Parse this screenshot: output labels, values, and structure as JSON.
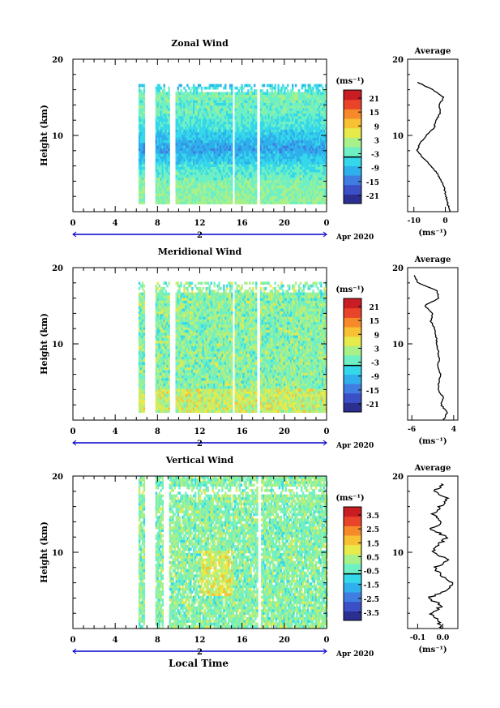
{
  "figure": {
    "xlabel": "Local Time",
    "date_label": "Apr 2020",
    "date_tick_label": "2"
  },
  "panels": [
    {
      "title": "Zonal Wind",
      "ylabel": "Height (km)",
      "y_ticks": [
        "20",
        "10"
      ],
      "x_ticks": [
        "0",
        "4",
        "8",
        "12",
        "16",
        "20",
        "0"
      ],
      "colorbar_unit": "(ms⁻¹)",
      "colorbar_ticks": [
        "21",
        "15",
        "9",
        "3",
        "-3",
        "-9",
        "-15",
        "-21"
      ],
      "avg_title": "Average",
      "avg_y_ticks": [
        "20",
        "10"
      ],
      "avg_x_ticks": [
        "-10",
        "0"
      ],
      "avg_unit": "(ms⁻¹)"
    },
    {
      "title": "Meridional Wind",
      "ylabel": "Height (km)",
      "y_ticks": [
        "20",
        "10"
      ],
      "x_ticks": [
        "0",
        "4",
        "8",
        "12",
        "16",
        "20",
        "0"
      ],
      "colorbar_unit": "(ms⁻¹)",
      "colorbar_ticks": [
        "21",
        "15",
        "9",
        "3",
        "-3",
        "-9",
        "-15",
        "-21"
      ],
      "avg_title": "Average",
      "avg_y_ticks": [
        "20",
        "10"
      ],
      "avg_x_ticks": [
        "-6",
        "4"
      ],
      "avg_unit": "(ms⁻¹)"
    },
    {
      "title": "Vertical Wind",
      "ylabel": "Height (km)",
      "y_ticks": [
        "20",
        "10"
      ],
      "x_ticks": [
        "0",
        "4",
        "8",
        "12",
        "16",
        "20",
        "0"
      ],
      "colorbar_unit": "(ms⁻¹)",
      "colorbar_ticks": [
        "3.5",
        "2.5",
        "1.5",
        "0.5",
        "-0.5",
        "-1.5",
        "-2.5",
        "-3.5"
      ],
      "avg_title": "Average",
      "avg_y_ticks": [
        "20",
        "10"
      ],
      "avg_x_ticks": [
        "-0.1",
        "0.0"
      ],
      "avg_unit": "(ms⁻¹)"
    }
  ],
  "colors": {
    "colormap": [
      "#2b2f8f",
      "#3b4fc7",
      "#3f7ee0",
      "#2fb0ec",
      "#35d8ea",
      "#6ef0c4",
      "#a8f08a",
      "#e6ea4a",
      "#f7c133",
      "#f68a2a",
      "#e8442a",
      "#c81e23"
    ],
    "missing": "#ffffff",
    "date_axis": "#0000cc"
  },
  "chart_data": [
    {
      "type": "heatmap",
      "title": "Zonal Wind",
      "ylabel": "Height (km)",
      "xlim": [
        0,
        24
      ],
      "ylim": [
        0,
        20
      ],
      "clim": [
        -24,
        24
      ],
      "units": "ms-1",
      "data_coverage_hours": [
        [
          6.2,
          6.7
        ],
        [
          7.8,
          9.1
        ],
        [
          9.7,
          15.0
        ],
        [
          15.3,
          17.3
        ],
        [
          17.7,
          24.0
        ]
      ],
      "profile": {
        "height": [
          0,
          1,
          2,
          3,
          4,
          5,
          6,
          7,
          8,
          9,
          10,
          11,
          12,
          13,
          14,
          15,
          16,
          17
        ],
        "value": [
          1.5,
          0.8,
          0.2,
          -0.3,
          -1.2,
          -2.5,
          -4.5,
          -7,
          -9,
          -8,
          -6,
          -3.5,
          -3,
          -1.5,
          -2,
          -0.5,
          -4,
          -9
        ]
      }
    },
    {
      "type": "heatmap",
      "title": "Meridional Wind",
      "ylabel": "Height (km)",
      "xlim": [
        0,
        24
      ],
      "ylim": [
        0,
        20
      ],
      "clim": [
        -24,
        24
      ],
      "units": "ms-1",
      "data_coverage_hours": [
        [
          6.2,
          6.7
        ],
        [
          7.8,
          9.1
        ],
        [
          9.7,
          15.0
        ],
        [
          15.3,
          17.3
        ],
        [
          17.7,
          24.0
        ]
      ],
      "profile": {
        "height": [
          0,
          1,
          2,
          3,
          4,
          5,
          6,
          7,
          8,
          9,
          10,
          11,
          12,
          13,
          14,
          15,
          16,
          17,
          18,
          19
        ],
        "value": [
          1.5,
          2.5,
          1.0,
          1.5,
          0.2,
          0.5,
          0.8,
          0.2,
          0.5,
          0.3,
          0.0,
          -0.2,
          -0.5,
          -1.5,
          -1.0,
          -3.0,
          0.5,
          0.0,
          -4.5,
          -5.5
        ]
      }
    },
    {
      "type": "heatmap",
      "title": "Vertical Wind",
      "ylabel": "Height (km)",
      "xlim": [
        0,
        24
      ],
      "ylim": [
        0,
        20
      ],
      "clim": [
        -4,
        4
      ],
      "units": "ms-1",
      "data_coverage_hours": [
        [
          6.2,
          6.7
        ],
        [
          7.8,
          8.5
        ],
        [
          9.1,
          17.5
        ],
        [
          17.8,
          24.0
        ]
      ],
      "profile": {
        "height": [
          0,
          1,
          2,
          3,
          4,
          5,
          6,
          7,
          8,
          9,
          10,
          11,
          12,
          13,
          14,
          15,
          16,
          17,
          18,
          19
        ],
        "value": [
          0.0,
          -0.02,
          -0.05,
          0.0,
          -0.06,
          0.02,
          0.04,
          -0.01,
          -0.03,
          0.03,
          -0.04,
          -0.02,
          0.02,
          -0.05,
          0.0,
          -0.04,
          -0.01,
          0.02,
          -0.03,
          0.0
        ]
      }
    }
  ]
}
